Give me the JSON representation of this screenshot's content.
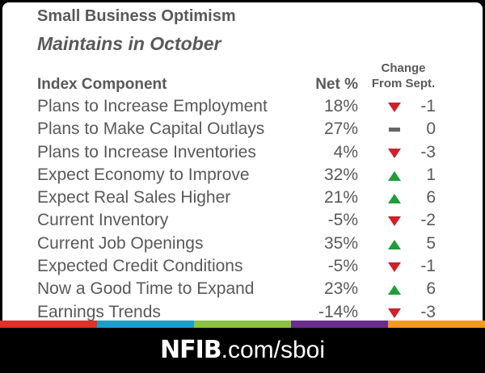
{
  "header": {
    "title": "Small Business Optimism",
    "subtitle": "Maintains in October"
  },
  "table": {
    "col_component": "Index Component",
    "col_net": "Net %",
    "col_change_line1": "Change",
    "col_change_line2": "From Sept.",
    "rows": [
      {
        "component": "Plans to Increase Employment",
        "net": "18%",
        "direction": "down",
        "change": "-1"
      },
      {
        "component": "Plans to Make Capital Outlays",
        "net": "27%",
        "direction": "flat",
        "change": "0"
      },
      {
        "component": "Plans to Increase Inventories",
        "net": "4%",
        "direction": "down",
        "change": "-3"
      },
      {
        "component": "Expect Economy to Improve",
        "net": "32%",
        "direction": "up",
        "change": "1"
      },
      {
        "component": "Expect Real Sales Higher",
        "net": "21%",
        "direction": "up",
        "change": "6"
      },
      {
        "component": "Current Inventory",
        "net": "-5%",
        "direction": "down",
        "change": "-2"
      },
      {
        "component": "Current Job Openings",
        "net": "35%",
        "direction": "up",
        "change": "5"
      },
      {
        "component": "Expected Credit Conditions",
        "net": "-5%",
        "direction": "down",
        "change": "-1"
      },
      {
        "component": "Now a Good Time to Expand",
        "net": "23%",
        "direction": "up",
        "change": "6"
      },
      {
        "component": "Earnings Trends",
        "net": "-14%",
        "direction": "down",
        "change": "-3"
      }
    ]
  },
  "footer": {
    "brand_bold": "NFIB",
    "brand_rest": ".com/sboi"
  },
  "colors": {
    "up": "#1e9e3a",
    "down": "#d0202a",
    "flat": "#666666",
    "stripe": [
      "#e0302a",
      "#1aa0c8",
      "#8cc23f",
      "#6b2d8c",
      "#f59a1f"
    ]
  }
}
